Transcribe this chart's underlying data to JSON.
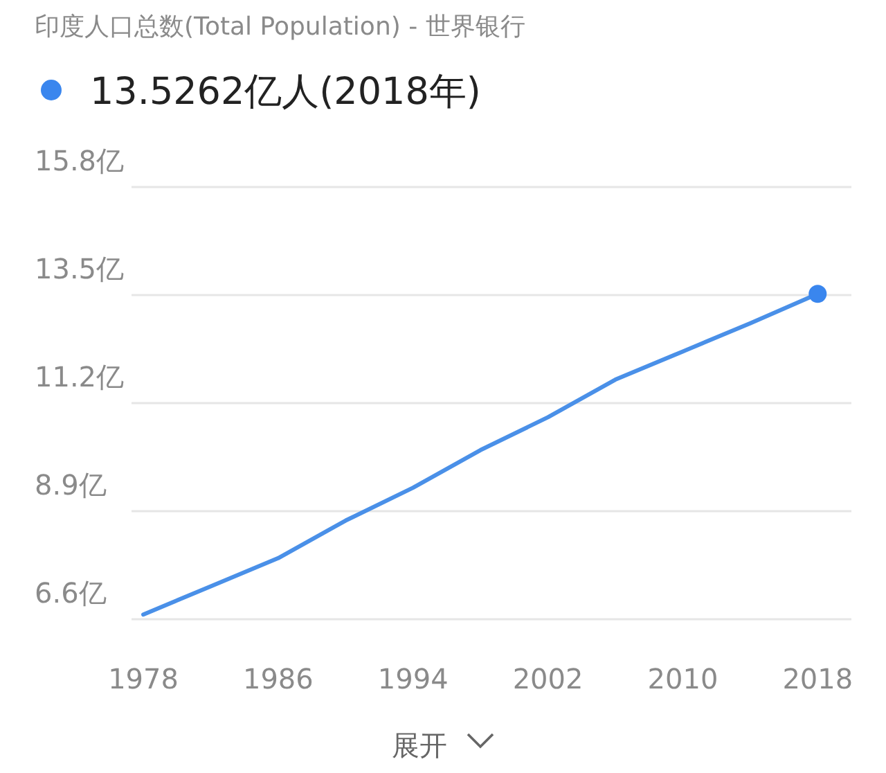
{
  "chart_data": {
    "type": "line",
    "title": "印度人口总数(Total Population) - 世界银行",
    "x": [
      1978,
      1982,
      1986,
      1990,
      1994,
      1998,
      2002,
      2006,
      2010,
      2014,
      2018
    ],
    "series": [
      {
        "color": "#4a90e8",
        "values": [
          6.7,
          7.3,
          7.9,
          8.7,
          9.4,
          10.2,
          10.9,
          11.7,
          12.3,
          12.9,
          13.5262
        ],
        "marker": "none"
      },
      {
        "type": "scatter",
        "name": "13.5262亿人(2018年)",
        "color": "#3a86ee",
        "x": [
          2018
        ],
        "values": [
          13.5262
        ],
        "marker": "circle"
      }
    ],
    "xlim": [
      1977.3,
      2020
    ],
    "ylim": [
      6.6,
      15.8
    ],
    "xticks": [
      1978,
      1986,
      1994,
      2002,
      2010,
      2018
    ],
    "yticks": [
      {
        "value": 6.6,
        "label": "6.6亿"
      },
      {
        "value": 8.9,
        "label": "8.9亿"
      },
      {
        "value": 11.2,
        "label": "11.2亿"
      },
      {
        "value": 13.5,
        "label": "13.5亿"
      },
      {
        "value": 15.8,
        "label": "15.8亿"
      }
    ],
    "grid": "y",
    "legend": "top left",
    "annotations": [
      "展开"
    ]
  }
}
